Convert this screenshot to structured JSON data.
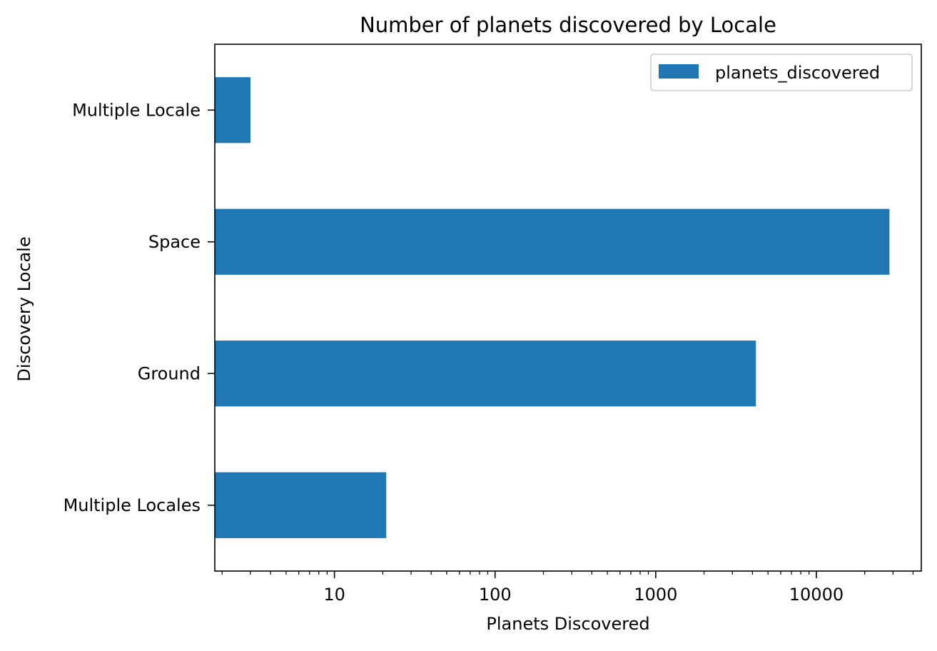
{
  "chart_data": {
    "type": "bar",
    "orientation": "horizontal",
    "title": "Number of planets discovered by Locale",
    "xlabel": "Planets Discovered",
    "ylabel": "Discovery Locale",
    "x_scale": "log",
    "xlim": [
      1.8,
      45000
    ],
    "x_ticks": [
      10,
      100,
      1000,
      10000
    ],
    "x_tick_labels": [
      "10",
      "100",
      "1000",
      "10000"
    ],
    "categories": [
      "Multiple Locales",
      "Ground",
      "Space",
      "Multiple Locale"
    ],
    "series": [
      {
        "name": "planets_discovered",
        "values": [
          21,
          4200,
          28500,
          3
        ],
        "color": "#1f77b4"
      }
    ],
    "legend": {
      "position": "top-right",
      "entries": [
        "planets_discovered"
      ]
    },
    "grid": false
  }
}
